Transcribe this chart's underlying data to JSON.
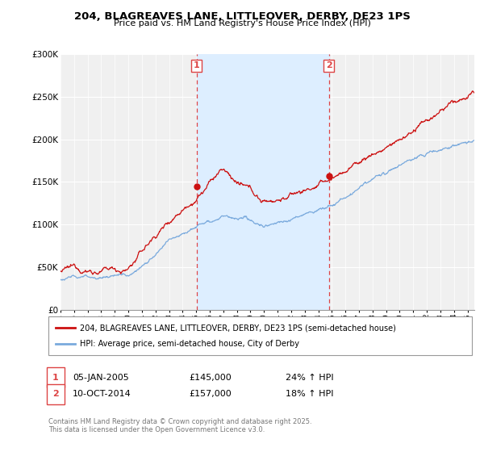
{
  "title_line1": "204, BLAGREAVES LANE, LITTLEOVER, DERBY, DE23 1PS",
  "title_line2": "Price paid vs. HM Land Registry's House Price Index (HPI)",
  "ylabel_ticks": [
    "£0",
    "£50K",
    "£100K",
    "£150K",
    "£200K",
    "£250K",
    "£300K"
  ],
  "ytick_vals": [
    0,
    50000,
    100000,
    150000,
    200000,
    250000,
    300000
  ],
  "ylim": [
    0,
    300000
  ],
  "xlim_start": 1995.0,
  "xlim_end": 2025.5,
  "sale1_date": 2005.02,
  "sale1_price": 145000,
  "sale1_label": "1",
  "sale2_date": 2014.78,
  "sale2_price": 157000,
  "sale2_label": "2",
  "vline_color": "#dd4444",
  "vline_style": "--",
  "vspan_color": "#ddeeff",
  "legend_line1": "204, BLAGREAVES LANE, LITTLEOVER, DERBY, DE23 1PS (semi-detached house)",
  "legend_line2": "HPI: Average price, semi-detached house, City of Derby",
  "table_row1": [
    "1",
    "05-JAN-2005",
    "£145,000",
    "24% ↑ HPI"
  ],
  "table_row2": [
    "2",
    "10-OCT-2014",
    "£157,000",
    "18% ↑ HPI"
  ],
  "footer": "Contains HM Land Registry data © Crown copyright and database right 2025.\nThis data is licensed under the Open Government Licence v3.0.",
  "red_line_color": "#cc1111",
  "blue_line_color": "#7aaadd",
  "background_color": "#ffffff",
  "plot_bg_color": "#f0f0f0"
}
